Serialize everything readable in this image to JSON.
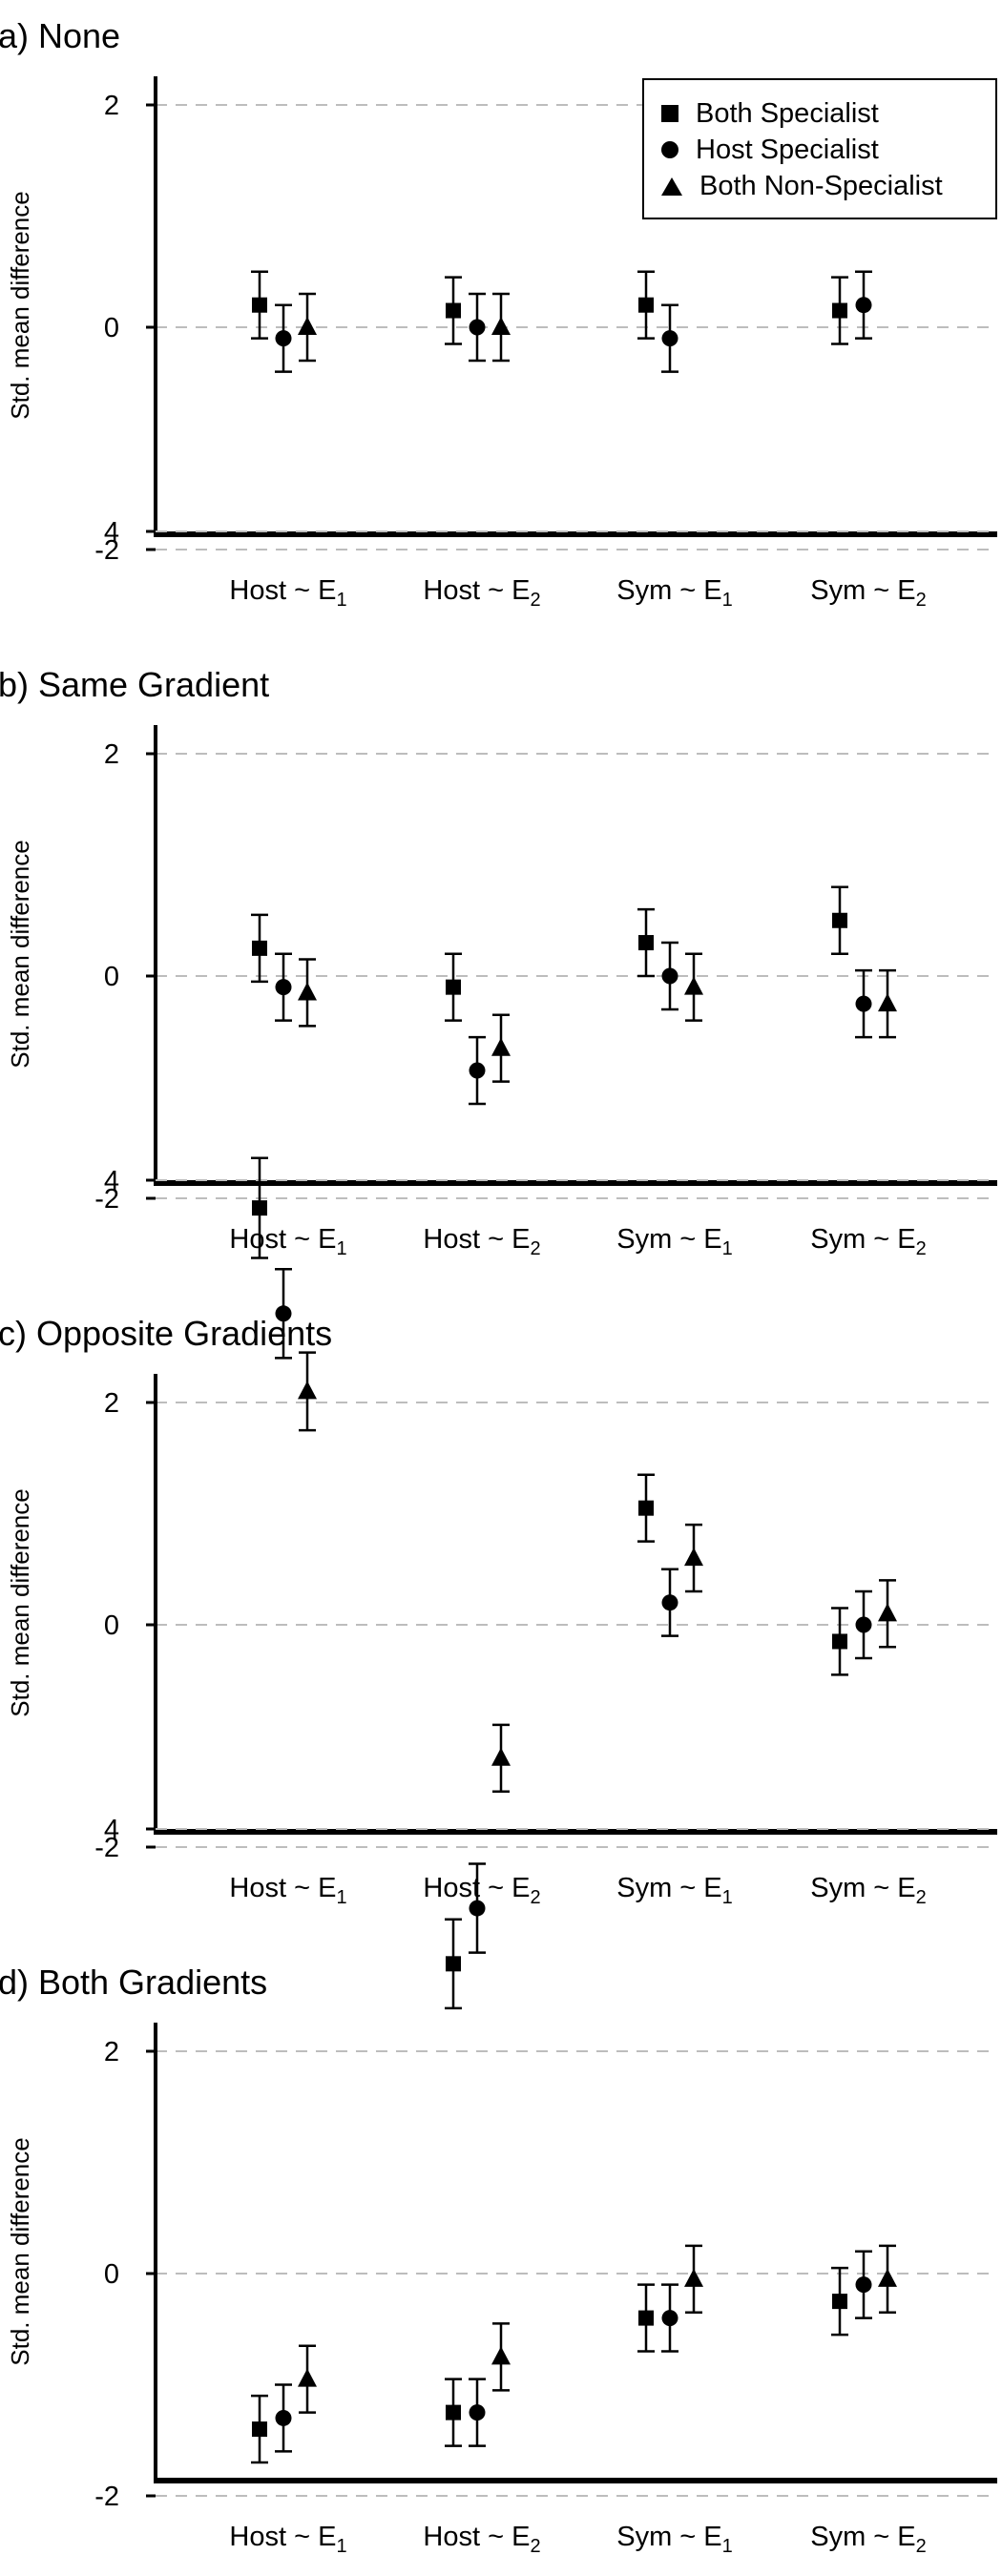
{
  "chart_data": [
    {
      "type": "scatter",
      "title": "(a) None",
      "ylabel": "Std. mean difference",
      "ylim": [
        -3.8,
        4.5
      ],
      "yticks": [
        -2,
        0,
        2,
        4
      ],
      "grid": "horizontal dashed at y ticks",
      "legend": "top-right",
      "categories": [
        "Host ~ E1",
        "Host ~ E2",
        "Sym ~ E1",
        "Sym ~ E2"
      ],
      "series": [
        {
          "name": "Both Specialist",
          "marker": "square",
          "values": [
            0.2,
            0.15,
            0.2,
            0.15
          ],
          "err": [
            0.3,
            0.3,
            0.3,
            0.3
          ]
        },
        {
          "name": "Host Specialist",
          "marker": "circle",
          "values": [
            -0.1,
            0.0,
            -0.1,
            0.2
          ],
          "err": [
            0.3,
            0.3,
            0.3,
            0.3
          ]
        },
        {
          "name": "Both Non-Specialist",
          "marker": "triangle",
          "values": [
            0.0,
            0.0,
            null,
            null
          ],
          "err": [
            0.3,
            0.3,
            0.3,
            0.3
          ]
        }
      ]
    },
    {
      "type": "scatter",
      "title": "(b) Same Gradient",
      "ylabel": "Std. mean difference",
      "ylim": [
        -3.8,
        4.5
      ],
      "yticks": [
        -2,
        0,
        2,
        4
      ],
      "grid": "horizontal dashed at y ticks",
      "categories": [
        "Host ~ E1",
        "Host ~ E2",
        "Sym ~ E1",
        "Sym ~ E2"
      ],
      "series": [
        {
          "name": "Both Specialist",
          "marker": "square",
          "values": [
            0.25,
            -0.1,
            0.3,
            0.5
          ],
          "err": [
            0.3,
            0.3,
            0.3,
            0.3
          ]
        },
        {
          "name": "Host Specialist",
          "marker": "circle",
          "values": [
            -0.1,
            -0.85,
            0.0,
            -0.25
          ],
          "err": [
            0.3,
            0.3,
            0.3,
            0.3
          ]
        },
        {
          "name": "Both Non-Specialist",
          "marker": "triangle",
          "values": [
            -0.15,
            -0.65,
            -0.1,
            -0.25
          ],
          "err": [
            0.3,
            0.3,
            0.3,
            0.3
          ]
        }
      ]
    },
    {
      "type": "scatter",
      "title": "(c) Opposite Gradients",
      "ylabel": "Std. mean difference",
      "ylim": [
        -3.8,
        4.5
      ],
      "yticks": [
        -2,
        0,
        2,
        4
      ],
      "grid": "horizontal dashed at y ticks",
      "categories": [
        "Host ~ E1",
        "Host ~ E2",
        "Sym ~ E1",
        "Sym ~ E2"
      ],
      "series": [
        {
          "name": "Both Specialist",
          "marker": "square",
          "values": [
            3.75,
            -3.05,
            1.05,
            -0.15
          ],
          "err": [
            0.45,
            0.4,
            0.3,
            0.3
          ]
        },
        {
          "name": "Host Specialist",
          "marker": "circle",
          "values": [
            2.8,
            -2.55,
            0.2,
            0.0
          ],
          "err": [
            0.4,
            0.4,
            0.3,
            0.3
          ]
        },
        {
          "name": "Both Non-Specialist",
          "marker": "triangle",
          "values": [
            2.1,
            -1.2,
            0.6,
            0.1
          ],
          "err": [
            0.35,
            0.3,
            0.3,
            0.3
          ]
        }
      ]
    },
    {
      "type": "scatter",
      "title": "(d) Both Gradients",
      "ylabel": "Std. mean difference",
      "ylim": [
        -3.8,
        4.5
      ],
      "yticks": [
        -2,
        0,
        2,
        4
      ],
      "grid": "horizontal dashed at y ticks",
      "categories": [
        "Host ~ E1",
        "Host ~ E2",
        "Sym ~ E1",
        "Sym ~ E2"
      ],
      "series": [
        {
          "name": "Both Specialist",
          "marker": "square",
          "values": [
            -1.4,
            -1.25,
            -0.4,
            -0.25
          ],
          "err": [
            0.3,
            0.3,
            0.3,
            0.3
          ]
        },
        {
          "name": "Host Specialist",
          "marker": "circle",
          "values": [
            -1.3,
            -1.25,
            -0.4,
            -0.1
          ],
          "err": [
            0.3,
            0.3,
            0.3,
            0.3
          ]
        },
        {
          "name": "Both Non-Specialist",
          "marker": "triangle",
          "values": [
            -0.95,
            -0.75,
            -0.05,
            -0.05
          ],
          "err": [
            0.3,
            0.3,
            0.3,
            0.3
          ]
        }
      ]
    }
  ],
  "legend": {
    "items": [
      {
        "label": "Both Specialist",
        "marker": "square"
      },
      {
        "label": "Host Specialist",
        "marker": "circle"
      },
      {
        "label": "Both Non-Specialist",
        "marker": "triangle"
      }
    ]
  },
  "colors": {
    "marker": "#000000",
    "axis": "#000000",
    "grid": "#bdbdbd"
  }
}
